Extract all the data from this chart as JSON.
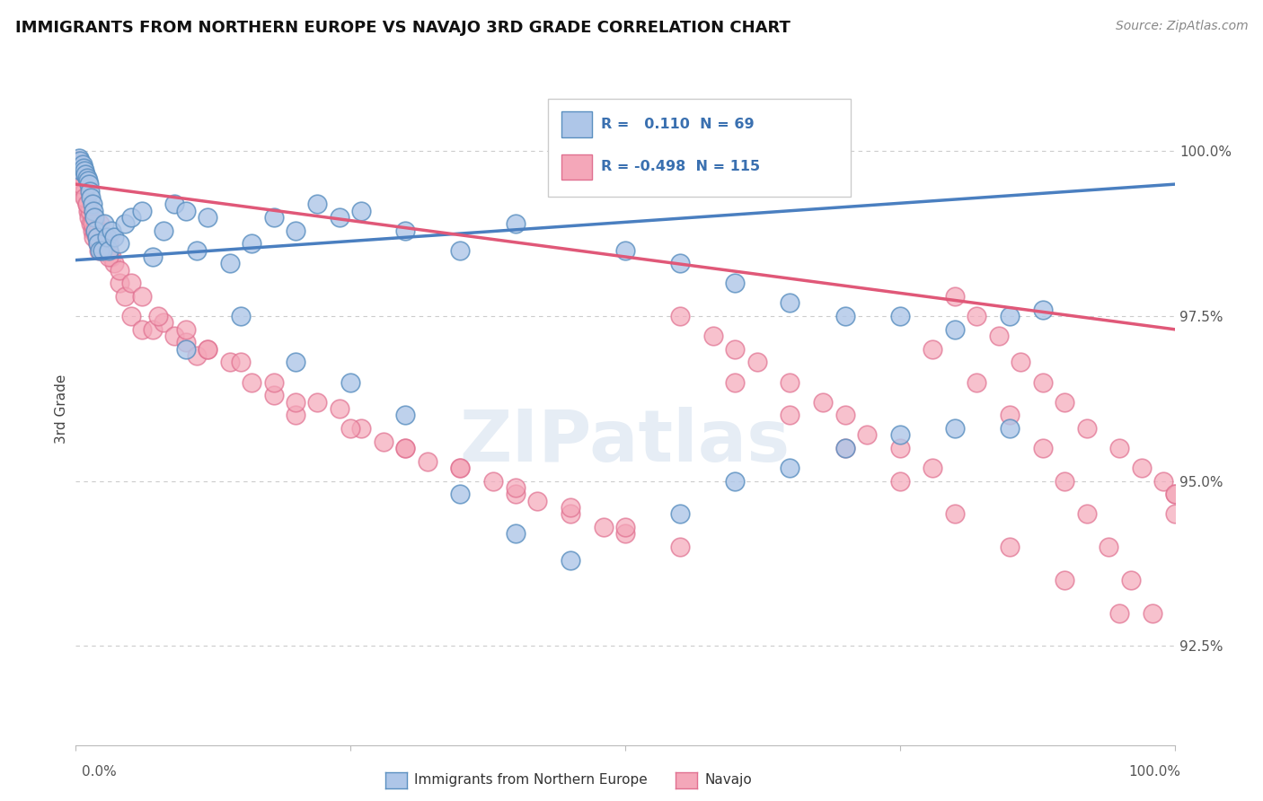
{
  "title": "IMMIGRANTS FROM NORTHERN EUROPE VS NAVAJO 3RD GRADE CORRELATION CHART",
  "source": "Source: ZipAtlas.com",
  "xlabel_bottom_left": "0.0%",
  "xlabel_bottom_right": "100.0%",
  "ylabel": "3rd Grade",
  "yticks": [
    92.5,
    95.0,
    97.5,
    100.0
  ],
  "ytick_labels": [
    "92.5%",
    "95.0%",
    "97.5%",
    "100.0%"
  ],
  "xmin": 0.0,
  "xmax": 100.0,
  "ymin": 91.0,
  "ymax": 101.2,
  "blue_R": 0.11,
  "blue_N": 69,
  "pink_R": -0.498,
  "pink_N": 115,
  "blue_color": "#aec6e8",
  "pink_color": "#f4a7b9",
  "blue_edge_color": "#5a8fc0",
  "pink_edge_color": "#e07090",
  "blue_line_color": "#4a7fc0",
  "pink_line_color": "#e05878",
  "legend_label_color": "#3a70b0",
  "legend_blue_label": "Immigrants from Northern Europe",
  "legend_pink_label": "Navajo",
  "watermark": "ZIPatlas",
  "blue_line_start_y": 98.35,
  "blue_line_end_y": 99.5,
  "pink_line_start_y": 99.5,
  "pink_line_end_y": 97.3,
  "blue_scatter_x": [
    0.3,
    0.4,
    0.5,
    0.6,
    0.7,
    0.8,
    0.9,
    1.0,
    1.1,
    1.2,
    1.3,
    1.4,
    1.5,
    1.6,
    1.7,
    1.8,
    1.9,
    2.0,
    2.2,
    2.4,
    2.6,
    2.8,
    3.0,
    3.2,
    3.5,
    4.0,
    4.5,
    5.0,
    6.0,
    7.0,
    8.0,
    9.0,
    10.0,
    11.0,
    12.0,
    14.0,
    16.0,
    18.0,
    20.0,
    22.0,
    24.0,
    26.0,
    30.0,
    35.0,
    40.0,
    50.0,
    55.0,
    60.0,
    65.0,
    70.0,
    75.0,
    80.0,
    85.0,
    88.0,
    10.0,
    15.0,
    20.0,
    25.0,
    30.0,
    35.0,
    40.0,
    45.0,
    55.0,
    60.0,
    65.0,
    70.0,
    75.0,
    80.0,
    85.0
  ],
  "blue_scatter_y": [
    99.9,
    99.85,
    99.7,
    99.8,
    99.75,
    99.7,
    99.65,
    99.6,
    99.55,
    99.5,
    99.4,
    99.3,
    99.2,
    99.1,
    99.0,
    98.8,
    98.7,
    98.6,
    98.5,
    98.5,
    98.9,
    98.7,
    98.5,
    98.8,
    98.7,
    98.6,
    98.9,
    99.0,
    99.1,
    98.4,
    98.8,
    99.2,
    99.1,
    98.5,
    99.0,
    98.3,
    98.6,
    99.0,
    98.8,
    99.2,
    99.0,
    99.1,
    98.8,
    98.5,
    98.9,
    98.5,
    98.3,
    98.0,
    97.7,
    97.5,
    97.5,
    97.3,
    97.5,
    97.6,
    97.0,
    97.5,
    96.8,
    96.5,
    96.0,
    94.8,
    94.2,
    93.8,
    94.5,
    95.0,
    95.2,
    95.5,
    95.7,
    95.8,
    95.8
  ],
  "pink_scatter_x": [
    0.2,
    0.3,
    0.5,
    0.6,
    0.7,
    0.8,
    0.9,
    1.0,
    1.1,
    1.2,
    1.3,
    1.4,
    1.5,
    1.6,
    1.7,
    1.8,
    1.9,
    2.0,
    2.1,
    2.2,
    2.4,
    2.6,
    2.8,
    3.0,
    3.2,
    3.5,
    4.0,
    4.5,
    5.0,
    6.0,
    7.0,
    8.0,
    9.0,
    10.0,
    11.0,
    12.0,
    14.0,
    16.0,
    18.0,
    20.0,
    22.0,
    24.0,
    26.0,
    28.0,
    30.0,
    32.0,
    35.0,
    38.0,
    40.0,
    42.0,
    45.0,
    48.0,
    50.0,
    55.0,
    58.0,
    60.0,
    62.0,
    65.0,
    68.0,
    70.0,
    72.0,
    75.0,
    78.0,
    80.0,
    82.0,
    84.0,
    86.0,
    88.0,
    90.0,
    92.0,
    95.0,
    97.0,
    100.0,
    0.5,
    0.8,
    1.0,
    1.5,
    2.0,
    2.5,
    3.0,
    4.0,
    5.0,
    6.0,
    7.5,
    10.0,
    12.0,
    15.0,
    18.0,
    20.0,
    25.0,
    30.0,
    35.0,
    40.0,
    45.0,
    50.0,
    55.0,
    60.0,
    65.0,
    70.0,
    75.0,
    80.0,
    85.0,
    90.0,
    95.0,
    99.0,
    78.0,
    82.0,
    85.0,
    88.0,
    90.0,
    92.0,
    94.0,
    96.0,
    98.0,
    100.0,
    100.0
  ],
  "pink_scatter_y": [
    99.85,
    99.8,
    99.7,
    99.6,
    99.5,
    99.4,
    99.3,
    99.2,
    99.1,
    99.0,
    99.1,
    98.9,
    98.8,
    98.7,
    98.8,
    98.9,
    98.7,
    98.6,
    98.5,
    98.9,
    98.7,
    98.5,
    98.5,
    98.6,
    98.4,
    98.3,
    98.0,
    97.8,
    97.5,
    97.3,
    97.3,
    97.4,
    97.2,
    97.1,
    96.9,
    97.0,
    96.8,
    96.5,
    96.3,
    96.0,
    96.2,
    96.1,
    95.8,
    95.6,
    95.5,
    95.3,
    95.2,
    95.0,
    94.8,
    94.7,
    94.5,
    94.3,
    94.2,
    97.5,
    97.2,
    97.0,
    96.8,
    96.5,
    96.2,
    96.0,
    95.7,
    95.5,
    95.2,
    97.8,
    97.5,
    97.2,
    96.8,
    96.5,
    96.2,
    95.8,
    95.5,
    95.2,
    94.8,
    99.5,
    99.3,
    99.2,
    98.9,
    98.8,
    98.6,
    98.4,
    98.2,
    98.0,
    97.8,
    97.5,
    97.3,
    97.0,
    96.8,
    96.5,
    96.2,
    95.8,
    95.5,
    95.2,
    94.9,
    94.6,
    94.3,
    94.0,
    96.5,
    96.0,
    95.5,
    95.0,
    94.5,
    94.0,
    93.5,
    93.0,
    95.0,
    97.0,
    96.5,
    96.0,
    95.5,
    95.0,
    94.5,
    94.0,
    93.5,
    93.0,
    94.8,
    94.5
  ]
}
